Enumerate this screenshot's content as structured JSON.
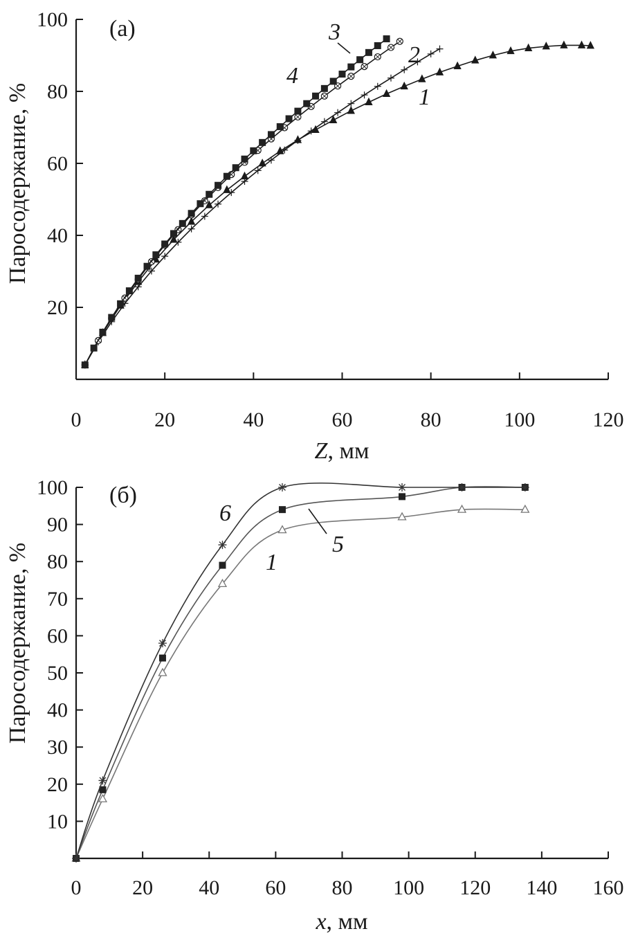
{
  "chart_data": [
    {
      "id": "a",
      "type": "line",
      "panel_label": "(a)",
      "xlabel_var": "Z",
      "xlabel_unit": ", мм",
      "ylabel": "Паросодержание, %",
      "xlim": [
        0,
        120
      ],
      "ylim": [
        0,
        100
      ],
      "x_ticks": [
        0,
        20,
        40,
        60,
        80,
        100,
        120
      ],
      "y_ticks": [
        20,
        40,
        60,
        80,
        100
      ],
      "series": [
        {
          "name": "1",
          "marker": "triangle-filled",
          "color": "#1a1a1a",
          "x": [
            2,
            6,
            10,
            14,
            18,
            22,
            26,
            30,
            34,
            38,
            42,
            46,
            50,
            54,
            58,
            62,
            66,
            70,
            74,
            78,
            82,
            86,
            90,
            94,
            98,
            102,
            106,
            110,
            114,
            116
          ],
          "y": [
            4,
            12.9,
            20.5,
            27.1,
            33.3,
            38.8,
            43.8,
            48.4,
            52.6,
            56.4,
            60,
            63.4,
            66.5,
            69.3,
            72,
            74.6,
            77,
            79.3,
            81.4,
            83.4,
            85.3,
            87,
            88.6,
            90,
            91.2,
            92,
            92.5,
            92.8,
            92.8,
            92.7
          ]
        },
        {
          "name": "2",
          "marker": "plus-cross",
          "color": "#1a1a1a",
          "x": [
            2,
            5,
            8,
            11,
            14,
            17,
            20,
            23,
            26,
            29,
            32,
            35,
            38,
            41,
            44,
            47,
            50,
            53,
            56,
            59,
            62,
            65,
            68,
            71,
            74,
            77,
            80,
            82
          ],
          "y": [
            4,
            10.4,
            16,
            21.1,
            25.7,
            30.1,
            34.2,
            38.1,
            41.8,
            45.3,
            48.7,
            51.9,
            55,
            58,
            60.9,
            63.7,
            66.4,
            69,
            71.6,
            74.1,
            76.6,
            79,
            81.4,
            83.7,
            86,
            88.2,
            90.4,
            91.8
          ]
        },
        {
          "name": "3",
          "marker": "diamond-open",
          "color": "#1a1a1a",
          "x": [
            2,
            5,
            8,
            11,
            14,
            17,
            20,
            23,
            26,
            29,
            32,
            35,
            38,
            41,
            44,
            47,
            50,
            53,
            56,
            59,
            62,
            65,
            68,
            71,
            73
          ],
          "y": [
            4,
            10.8,
            17,
            22.6,
            27.8,
            32.7,
            37.3,
            41.6,
            45.7,
            49.6,
            53.3,
            56.9,
            60.3,
            63.6,
            66.8,
            69.9,
            72.9,
            75.8,
            78.7,
            81.5,
            84.2,
            86.9,
            89.6,
            92.2,
            93.9
          ]
        },
        {
          "name": "4",
          "marker": "square-filled",
          "color": "#1a1a1a",
          "x": [
            2,
            4,
            6,
            8,
            10,
            12,
            14,
            16,
            18,
            20,
            22,
            24,
            26,
            28,
            30,
            32,
            34,
            36,
            38,
            40,
            42,
            44,
            46,
            48,
            50,
            52,
            54,
            56,
            58,
            60,
            62,
            64,
            66,
            68,
            70
          ],
          "y": [
            4,
            8.7,
            13.1,
            17.2,
            21,
            24.6,
            28.1,
            31.4,
            34.6,
            37.6,
            40.5,
            43.3,
            46.1,
            48.8,
            51.4,
            53.9,
            56.4,
            58.8,
            61.2,
            63.5,
            65.8,
            68,
            70.2,
            72.4,
            74.5,
            76.6,
            78.7,
            80.8,
            82.8,
            84.8,
            86.8,
            88.8,
            90.8,
            92.7,
            94.6
          ]
        }
      ],
      "annotations": [
        {
          "text": "1",
          "series": "1"
        },
        {
          "text": "2",
          "series": "2"
        },
        {
          "text": "3",
          "series": "3"
        },
        {
          "text": "4",
          "series": "4"
        }
      ]
    },
    {
      "id": "b",
      "type": "line",
      "panel_label": "(б)",
      "xlabel_var": "x",
      "xlabel_unit": ", мм",
      "ylabel": "Паросодержание, %",
      "xlim": [
        0,
        160
      ],
      "ylim": [
        0,
        100
      ],
      "x_ticks": [
        0,
        20,
        40,
        60,
        80,
        100,
        120,
        140,
        160
      ],
      "y_ticks": [
        10,
        20,
        30,
        40,
        50,
        60,
        70,
        80,
        90,
        100
      ],
      "series": [
        {
          "name": "1",
          "marker": "triangle-open",
          "color": "#777777",
          "x": [
            0,
            8,
            26,
            44,
            62,
            98,
            116,
            135
          ],
          "y": [
            0,
            16,
            50,
            74,
            88.5,
            92,
            94,
            94
          ]
        },
        {
          "name": "5",
          "marker": "square-filled",
          "color": "#555555",
          "x": [
            0,
            8,
            26,
            44,
            62,
            98,
            116,
            135
          ],
          "y": [
            0,
            18.5,
            54,
            79,
            94,
            97.5,
            100,
            100
          ]
        },
        {
          "name": "6",
          "marker": "asterisk",
          "color": "#333333",
          "x": [
            0,
            8,
            26,
            44,
            62,
            98,
            116,
            135
          ],
          "y": [
            0,
            21,
            58,
            84.5,
            100,
            100,
            100,
            100
          ]
        }
      ],
      "annotations": [
        {
          "text": "6",
          "series": "6"
        },
        {
          "text": "5",
          "series": "5"
        },
        {
          "text": "1",
          "series": "1"
        }
      ]
    }
  ]
}
